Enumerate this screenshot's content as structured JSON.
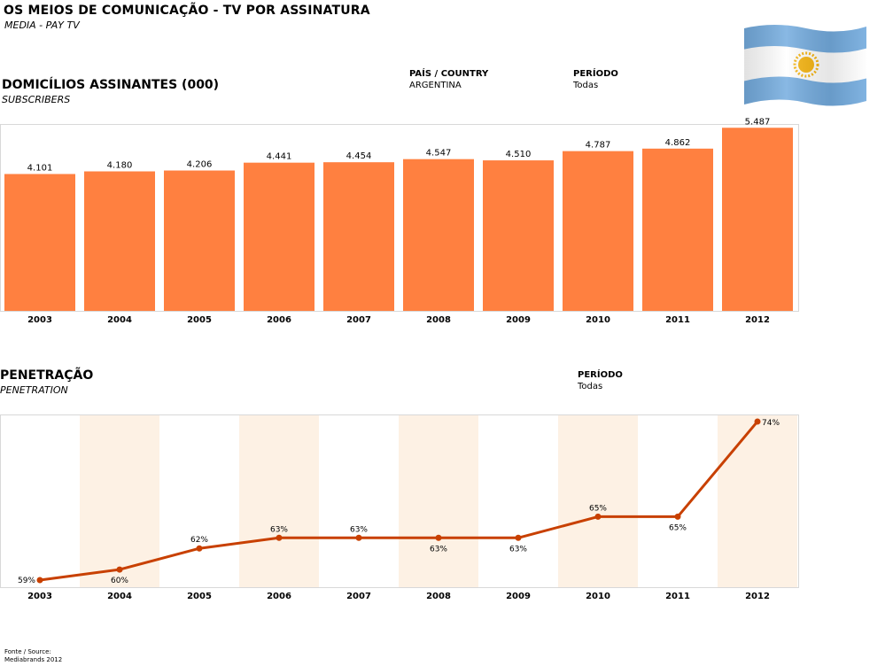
{
  "header": {
    "title": "OS MEIOS DE COMUNICAÇÃO - TV POR ASSINATURA",
    "subtitle": "MEDIA - PAY TV"
  },
  "filters": {
    "country_label": "PAÍS / COUNTRY",
    "country_value": "ARGENTINA",
    "period_label": "PERÍODO",
    "period_value": "Todas"
  },
  "flag": {
    "icon": "argentina-flag-icon",
    "colors": {
      "blue": "#74acdf",
      "white": "#ffffff",
      "sun": "#f6b40e"
    }
  },
  "subscribers": {
    "title": "DOMICÍLIOS ASSINANTES (000)",
    "subtitle": "SUBSCRIBERS",
    "period_label": "PERÍODO",
    "period_value": "Todas"
  },
  "penetration": {
    "title": "PENETRAÇÃO",
    "subtitle": "PENETRATION",
    "period_label": "PERÍODO",
    "period_value": "Todas"
  },
  "source": {
    "line1": "Fonte / Source:",
    "line2": "Mediabrands 2012"
  },
  "chart_data": [
    {
      "type": "bar",
      "categories": [
        "2003",
        "2004",
        "2005",
        "2006",
        "2007",
        "2008",
        "2009",
        "2010",
        "2011",
        "2012"
      ],
      "values": [
        4101,
        4180,
        4206,
        4441,
        4454,
        4547,
        4510,
        4787,
        4862,
        5487
      ],
      "value_labels": [
        "4.101",
        "4.180",
        "4.206",
        "4.441",
        "4.454",
        "4.547",
        "4.510",
        "4.787",
        "4.862",
        "5.487"
      ],
      "ylim": [
        0,
        5600
      ],
      "grid": false,
      "color": "#ff8040"
    },
    {
      "type": "line",
      "categories": [
        "2003",
        "2004",
        "2005",
        "2006",
        "2007",
        "2008",
        "2009",
        "2010",
        "2011",
        "2012"
      ],
      "values": [
        59,
        60,
        62,
        63,
        63,
        63,
        63,
        65,
        65,
        74
      ],
      "value_labels": [
        "59%",
        "60%",
        "62%",
        "63%",
        "63%",
        "63%",
        "63%",
        "65%",
        "65%",
        "74%"
      ],
      "ylim": [
        58.5,
        74.5
      ],
      "grid": false,
      "color": "#c84000",
      "band_color": "#fdf1e4"
    }
  ]
}
